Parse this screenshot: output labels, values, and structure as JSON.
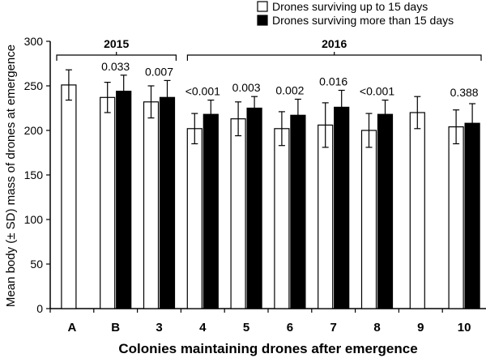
{
  "chart_data": {
    "type": "bar",
    "ylabel": "Mean body (± SD) mass of drones at emergence",
    "xlabel": "Colonies maintaining drones after emergence",
    "ylim": [
      0,
      300
    ],
    "yticks": [
      0,
      50,
      100,
      150,
      200,
      250,
      300
    ],
    "categories": [
      "A",
      "B",
      "3",
      "4",
      "5",
      "6",
      "7",
      "8",
      "9",
      "10"
    ],
    "series": [
      {
        "name": "Drones surviving up to 15 days",
        "color": "#ffffff",
        "values": [
          251,
          237,
          232,
          202,
          213,
          202,
          206,
          200,
          220,
          204
        ],
        "sd": [
          17,
          17,
          18,
          17,
          19,
          19,
          25,
          19,
          18,
          19
        ]
      },
      {
        "name": "Drones surviving more than 15 days",
        "color": "#000000",
        "values": [
          null,
          244,
          237,
          218,
          225,
          217,
          226,
          218,
          null,
          208
        ],
        "sd": [
          null,
          18,
          19,
          16,
          13,
          18,
          19,
          16,
          null,
          22
        ]
      }
    ],
    "p_values": [
      "",
      "0.033",
      "0.007",
      "<0.001",
      "0.003",
      "0.002",
      "0.016",
      "<0.001",
      "",
      "0.388"
    ],
    "year_groups": [
      {
        "label": "2015",
        "from": 0,
        "to": 2
      },
      {
        "label": "2016",
        "from": 3,
        "to": 9
      }
    ]
  }
}
